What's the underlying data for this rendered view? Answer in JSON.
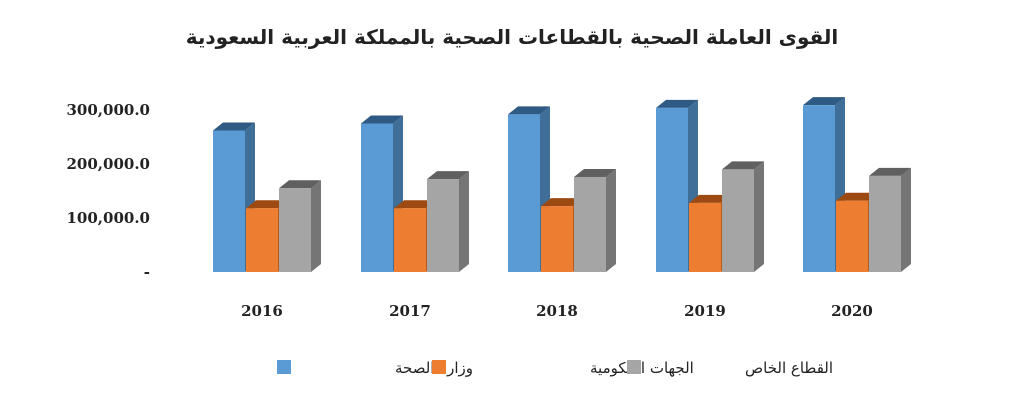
{
  "chart_data": {
    "type": "bar",
    "title": "القوى العاملة الصحية بالقطاعات الصحية بالمملكة العربية السعودية",
    "categories": [
      "2016",
      "2017",
      "2018",
      "2019",
      "2020"
    ],
    "series": [
      {
        "name": "وزارة الصحة",
        "values": [
          262000,
          275000,
          292000,
          304000,
          309000
        ]
      },
      {
        "name": "الجهات الحكومية",
        "values": [
          118000,
          118000,
          122000,
          128000,
          132000
        ]
      },
      {
        "name": "القطاع الخاص",
        "values": [
          155000,
          172000,
          176000,
          190000,
          178000
        ]
      }
    ],
    "y_ticks": [
      "-",
      "100,000.0",
      "200,000.0",
      "300,000.0"
    ],
    "y_tick_values": [
      0,
      100000,
      200000,
      300000
    ],
    "ylim": [
      0,
      300000
    ],
    "legend_position": "bottom",
    "grid": false,
    "colors": {
      "series": [
        "#5b9bd5",
        "#ed7d31",
        "#a5a5a5"
      ],
      "series_side": [
        "#3f6e98",
        "#b65a1c",
        "#757575"
      ],
      "series_top": [
        "#2e5a83",
        "#9c4a12",
        "#606060"
      ]
    }
  }
}
